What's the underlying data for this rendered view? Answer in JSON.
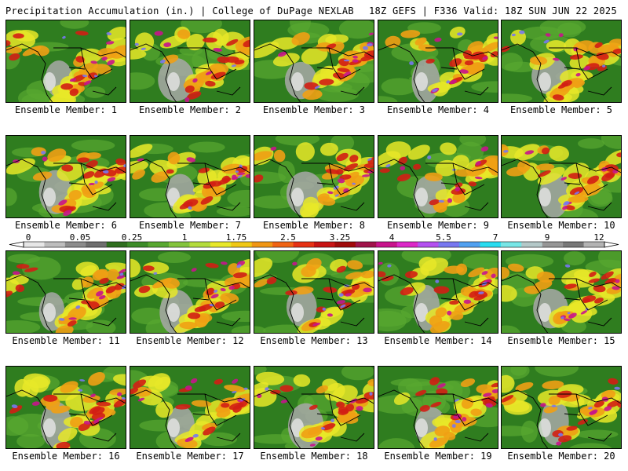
{
  "header": {
    "left_title": "Precipitation Accumulation (in.) | College of DuPage NEXLAB",
    "right_title": "18Z GEFS | F336 Valid: 18Z SUN JUN 22 2025"
  },
  "colorbar": {
    "labels": [
      "0",
      "0.05",
      "0.25",
      "1",
      "1.75",
      "2.5",
      "3.25",
      "4",
      "5.5",
      "7",
      "9",
      "12"
    ],
    "colors": [
      "#e6e6e6",
      "#bdbdbd",
      "#8c8c8c",
      "#6e6e6e",
      "#2e6e1e",
      "#3c8c28",
      "#58a830",
      "#84c43c",
      "#b4dc3c",
      "#e8e828",
      "#f0c814",
      "#f09614",
      "#f06414",
      "#e63214",
      "#c81414",
      "#a00a0a",
      "#a0144b",
      "#c8148c",
      "#dc28c8",
      "#b450f0",
      "#7878f0",
      "#50a0f0",
      "#28dcf0",
      "#78e6e6",
      "#b4c8c8",
      "#969696",
      "#787878",
      "#b4b4b4"
    ]
  },
  "map_colors": {
    "land_base": "#2f7d1f",
    "dry": "#a8a8a8",
    "light": "#e8e828",
    "moderate": "#f0a014",
    "heavy": "#d21e14",
    "very_heavy": "#c8148c",
    "extreme": "#7878f0"
  },
  "members": [
    {
      "label": "Ensemble Member: 1"
    },
    {
      "label": "Ensemble Member: 2"
    },
    {
      "label": "Ensemble Member: 3"
    },
    {
      "label": "Ensemble Member: 4"
    },
    {
      "label": "Ensemble Member: 5"
    },
    {
      "label": "Ensemble Member: 6"
    },
    {
      "label": "Ensemble Member: 7"
    },
    {
      "label": "Ensemble Member: 8"
    },
    {
      "label": "Ensemble Member: 9"
    },
    {
      "label": "Ensemble Member: 10"
    },
    {
      "label": "Ensemble Member: 11"
    },
    {
      "label": "Ensemble Member: 12"
    },
    {
      "label": "Ensemble Member: 13"
    },
    {
      "label": "Ensemble Member: 14"
    },
    {
      "label": "Ensemble Member: 15"
    },
    {
      "label": "Ensemble Member: 16"
    },
    {
      "label": "Ensemble Member: 17"
    },
    {
      "label": "Ensemble Member: 18"
    },
    {
      "label": "Ensemble Member: 19"
    },
    {
      "label": "Ensemble Member: 20"
    }
  ]
}
